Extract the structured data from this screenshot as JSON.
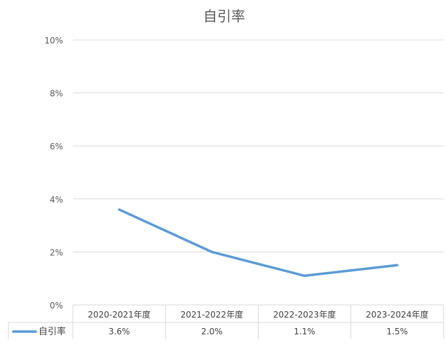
{
  "chart_data": {
    "type": "line",
    "title": "自引率",
    "categories": [
      "2020-2021年度",
      "2021-2022年度",
      "2022-2023年度",
      "2023-2024年度"
    ],
    "series": [
      {
        "name": "自引率",
        "values": [
          3.6,
          2.0,
          1.1,
          1.5
        ],
        "labels": [
          "3.6%",
          "2.0%",
          "1.1%",
          "1.5%"
        ],
        "color": "#5b9bd5"
      }
    ],
    "y_ticks": [
      "0%",
      "2%",
      "4%",
      "6%",
      "8%",
      "10%"
    ],
    "ylim": [
      0,
      10
    ],
    "grid": true,
    "legend": "data-table-left"
  }
}
